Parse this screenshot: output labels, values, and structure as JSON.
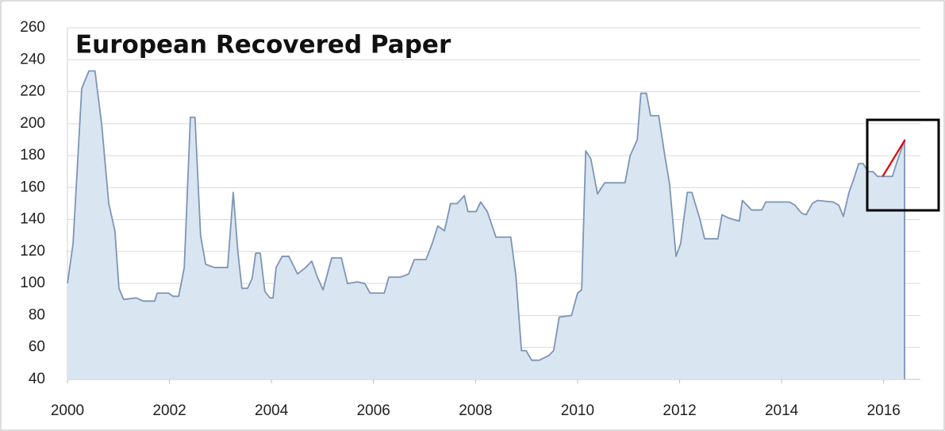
{
  "chart_data": {
    "type": "area",
    "title": "European Recovered Paper",
    "x": [
      2000.0,
      2000.11,
      2000.28,
      2000.42,
      2000.54,
      2000.67,
      2000.81,
      2000.93,
      2001.01,
      2001.1,
      2001.35,
      2001.48,
      2001.71,
      2001.76,
      2001.98,
      2002.07,
      2002.18,
      2002.29,
      2002.41,
      2002.5,
      2002.61,
      2002.71,
      2002.88,
      2003.14,
      2003.25,
      2003.34,
      2003.42,
      2003.53,
      2003.62,
      2003.69,
      2003.78,
      2003.87,
      2003.97,
      2004.03,
      2004.09,
      2004.21,
      2004.34,
      2004.51,
      2004.67,
      2004.79,
      2004.9,
      2005.01,
      2005.18,
      2005.37,
      2005.49,
      2005.68,
      2005.83,
      2005.93,
      2006.21,
      2006.3,
      2006.53,
      2006.69,
      2006.8,
      2007.03,
      2007.15,
      2007.26,
      2007.39,
      2007.51,
      2007.64,
      2007.78,
      2007.85,
      2008.01,
      2008.1,
      2008.23,
      2008.4,
      2008.69,
      2008.79,
      2008.9,
      2008.99,
      2009.1,
      2009.25,
      2009.44,
      2009.53,
      2009.64,
      2009.88,
      2010.0,
      2010.08,
      2010.16,
      2010.26,
      2010.39,
      2010.53,
      2010.93,
      2011.03,
      2011.17,
      2011.24,
      2011.35,
      2011.43,
      2011.59,
      2011.71,
      2011.8,
      2011.93,
      2012.02,
      2012.15,
      2012.24,
      2012.4,
      2012.49,
      2012.75,
      2012.83,
      2012.96,
      2013.06,
      2013.17,
      2013.23,
      2013.41,
      2013.61,
      2013.69,
      2014.15,
      2014.26,
      2014.39,
      2014.48,
      2014.6,
      2014.7,
      2015.01,
      2015.12,
      2015.21,
      2015.32,
      2015.41,
      2015.51,
      2015.6,
      2015.69,
      2015.79,
      2015.88,
      2016.17,
      2016.25,
      2016.41
    ],
    "values": [
      100,
      125,
      222,
      233,
      233,
      200,
      150,
      133,
      97,
      90,
      91,
      89,
      89,
      94,
      94,
      92,
      92,
      110,
      204,
      204,
      130,
      112,
      110,
      110,
      157,
      120,
      97,
      97,
      103,
      119,
      119,
      95,
      91,
      91,
      110,
      117,
      117,
      106,
      110,
      114,
      104,
      96,
      116,
      116,
      100,
      101,
      100,
      94,
      94,
      104,
      104,
      106,
      115,
      115,
      125,
      136,
      133,
      150,
      150,
      155,
      145,
      145,
      151,
      145,
      129,
      129,
      105,
      58,
      58,
      52,
      52,
      55,
      58,
      79,
      80,
      94,
      96,
      183,
      178,
      156,
      163,
      163,
      180,
      190,
      219,
      219,
      205,
      205,
      180,
      163,
      117,
      125,
      157,
      157,
      140,
      128,
      128,
      143,
      141,
      140,
      139,
      152,
      146,
      146,
      151,
      151,
      149,
      144,
      143,
      150,
      152,
      151,
      149,
      142,
      157,
      165,
      175,
      175,
      170,
      170,
      167,
      167,
      175,
      190
    ],
    "color": "#7d95b5",
    "fill": "#dae5f2",
    "highlight": {
      "x": [
        2015.98,
        2016.42
      ],
      "values": [
        167,
        190
      ],
      "color": "#e00000"
    },
    "xlim": [
      2000,
      2016.72
    ],
    "xticks": [
      2000,
      2002,
      2004,
      2006,
      2008,
      2010,
      2012,
      2014,
      2016
    ],
    "ylim": [
      40,
      260
    ],
    "yticks": [
      40,
      60,
      80,
      100,
      120,
      140,
      160,
      180,
      200,
      220,
      240,
      260
    ],
    "grid": true
  }
}
